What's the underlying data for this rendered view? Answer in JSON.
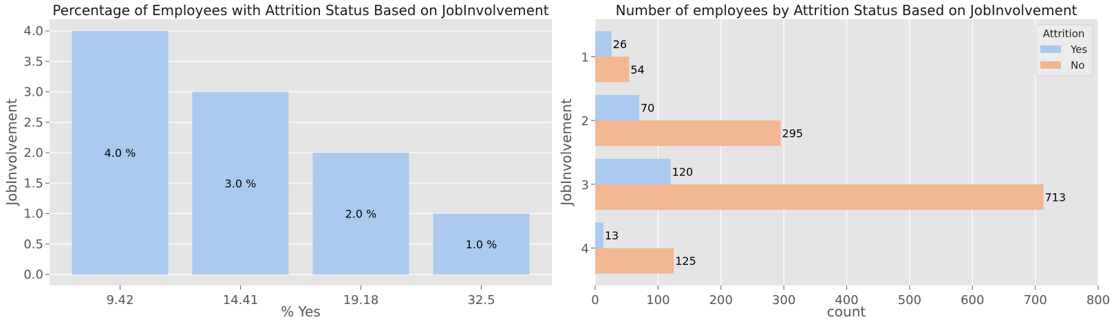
{
  "chart_data": [
    {
      "type": "bar",
      "title": "Percentage of Employees with Attrition Status Based on JobInvolvement",
      "xlabel": "% Yes",
      "ylabel": "JobInvolvement",
      "categories": [
        "9.42",
        "14.41",
        "19.18",
        "32.5"
      ],
      "values": [
        4.0,
        3.0,
        2.0,
        1.0
      ],
      "data_labels": [
        "4.0 %",
        "3.0 %",
        "2.0 %",
        "1.0 %"
      ],
      "ylim": [
        0,
        4.0
      ],
      "yticks": [
        "0.0",
        "0.5",
        "1.0",
        "1.5",
        "2.0",
        "2.5",
        "3.0",
        "3.5",
        "4.0"
      ],
      "grid": true,
      "colors": {
        "bar": "#abc9ee",
        "background": "#e5e5e5"
      }
    },
    {
      "type": "bar",
      "orientation": "horizontal",
      "title": "Number of employees by Attrition Status Based on JobInvolvement",
      "xlabel": "count",
      "ylabel": "JobInvolvement",
      "categories": [
        "1",
        "2",
        "3",
        "4"
      ],
      "xlim": [
        0,
        800
      ],
      "xticks": [
        "0",
        "100",
        "200",
        "300",
        "400",
        "500",
        "600",
        "700",
        "800"
      ],
      "series": [
        {
          "name": "Yes",
          "values": [
            26,
            70,
            120,
            13
          ],
          "color": "#abc9ee"
        },
        {
          "name": "No",
          "values": [
            54,
            295,
            713,
            125
          ],
          "color": "#f1b792"
        }
      ],
      "legend": {
        "title": "Attrition",
        "placement": "top-right"
      },
      "grid": true,
      "colors": {
        "background": "#e5e5e5"
      }
    }
  ]
}
